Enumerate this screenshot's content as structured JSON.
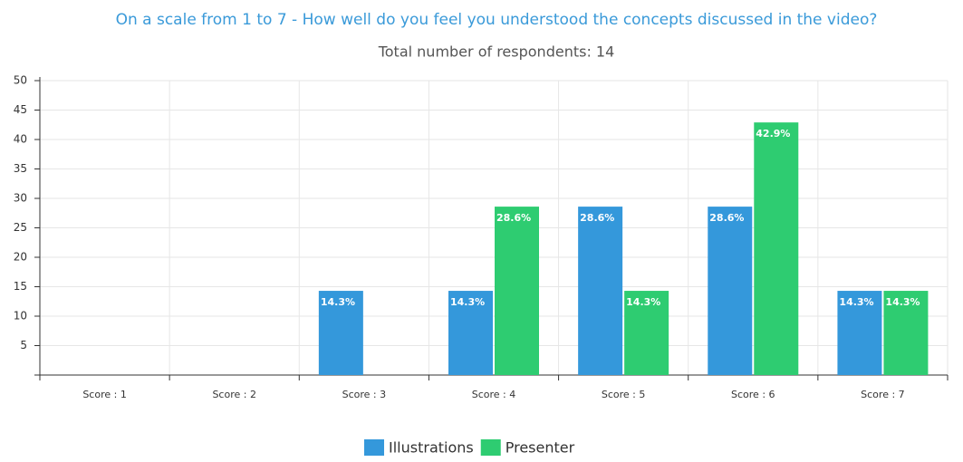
{
  "chart_data": {
    "type": "bar",
    "title": "On a scale from 1 to 7 - How well do you feel you understood the concepts discussed in the video?",
    "subtitle": "Total number of respondents: 14",
    "categories": [
      "Score : 1",
      "Score : 2",
      "Score : 3",
      "Score : 4",
      "Score : 5",
      "Score : 6",
      "Score : 7"
    ],
    "series": [
      {
        "name": "Illustrations",
        "color": "#3498db",
        "values": [
          0,
          0,
          14.3,
          14.3,
          28.6,
          28.6,
          14.3
        ],
        "value_labels": [
          null,
          null,
          "14.3%",
          "14.3%",
          "28.6%",
          "28.6%",
          "14.3%"
        ]
      },
      {
        "name": "Presenter",
        "color": "#2ecc71",
        "values": [
          0,
          0,
          0,
          28.6,
          14.3,
          42.9,
          14.3
        ],
        "value_labels": [
          null,
          null,
          null,
          "28.6%",
          "14.3%",
          "42.9%",
          "14.3%"
        ]
      }
    ],
    "ylim": [
      0,
      50
    ],
    "yticks": [
      5,
      10,
      15,
      20,
      25,
      30,
      35,
      40,
      45,
      50
    ],
    "grid": true
  }
}
